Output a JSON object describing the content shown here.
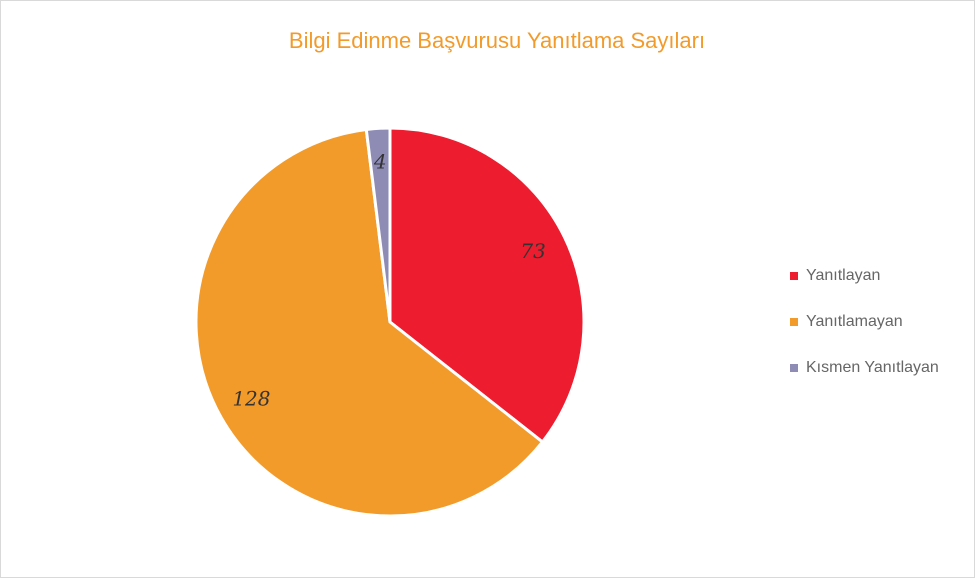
{
  "chart_data": {
    "type": "pie",
    "title": "Bilgi Edinme Başvurusu Yanıtlama Sayıları",
    "categories": [
      "Yanıtlayan",
      "Yanıtlamayan",
      "Kısmen Yanıtlayan"
    ],
    "values": [
      73,
      128,
      4
    ],
    "colors": [
      "#ed1c2e",
      "#f29b2b",
      "#8e8cb5"
    ],
    "legend": "right"
  }
}
